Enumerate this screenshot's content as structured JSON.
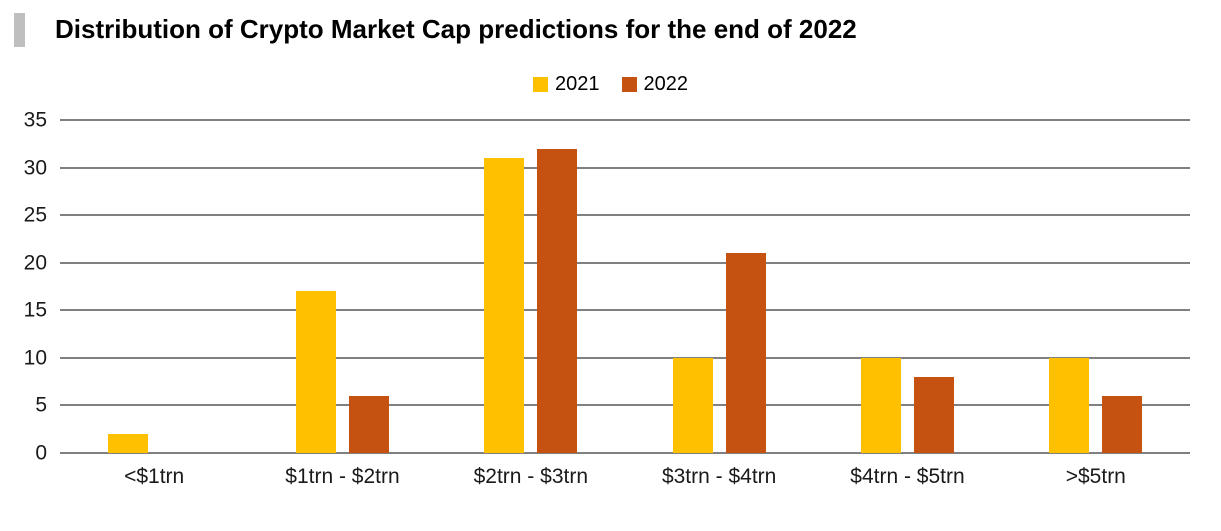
{
  "title": "Distribution of Crypto Market Cap predictions for the end of 2022",
  "colors": {
    "accent_bar": "#BFBFBF",
    "gridline": "#808080",
    "series_2021": "#FFC000",
    "series_2022": "#C55211"
  },
  "chart_data": {
    "type": "bar",
    "title": "Distribution of Crypto Market Cap predictions for the end of 2022",
    "categories": [
      "<$1trn",
      "$1trn - $2trn",
      "$2trn - $3trn",
      "$3trn - $4trn",
      "$4trn - $5trn",
      ">$5trn"
    ],
    "series": [
      {
        "name": "2021",
        "color": "#FFC000",
        "values": [
          2,
          17,
          31,
          10,
          10,
          10
        ]
      },
      {
        "name": "2022",
        "color": "#C55211",
        "values": [
          0,
          6,
          32,
          21,
          8,
          6
        ]
      }
    ],
    "xlabel": "",
    "ylabel": "",
    "ylim": [
      0,
      35
    ],
    "ytick_step": 5,
    "grid": true,
    "legend_position": "top-center"
  }
}
